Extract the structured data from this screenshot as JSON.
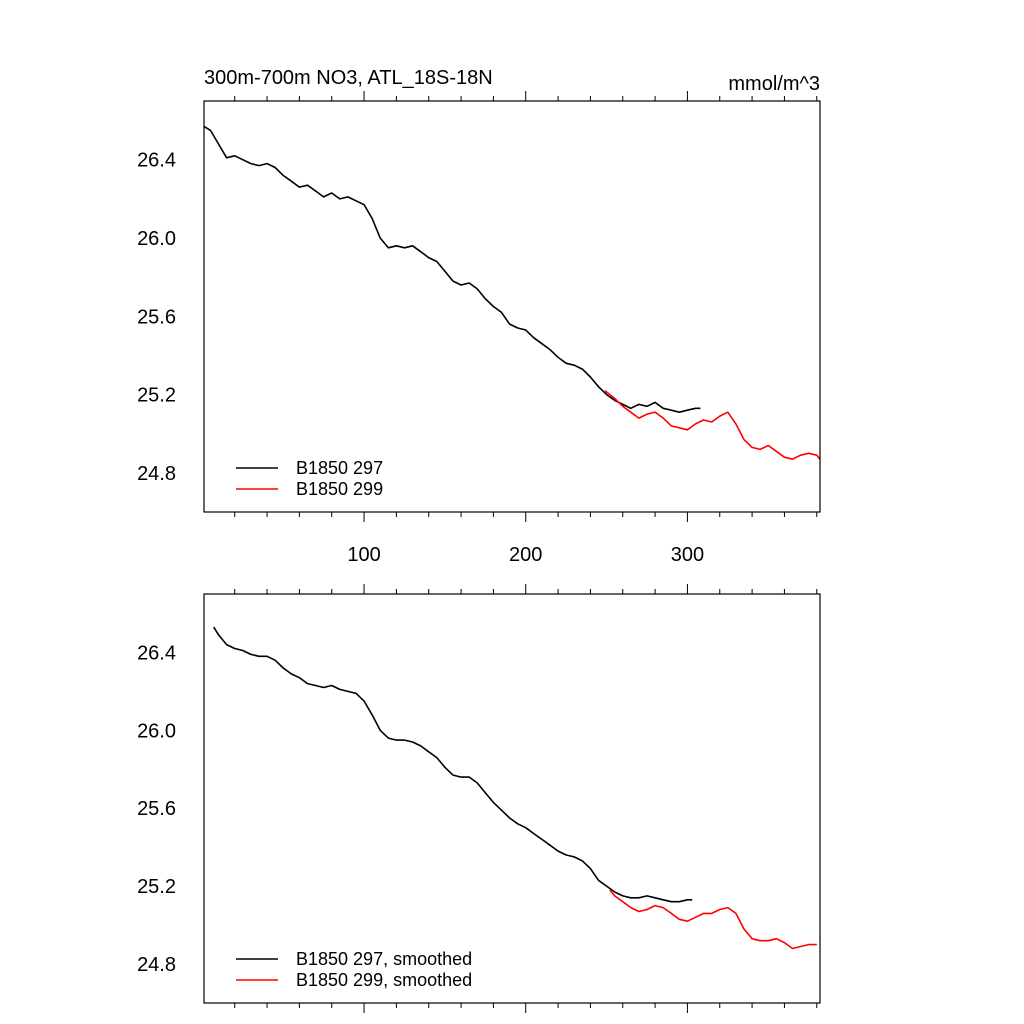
{
  "chart_data": [
    {
      "type": "line",
      "title": "300m-700m NO3, ATL_18S-18N",
      "units": "mmol/m^3",
      "xlim": [
        1,
        382
      ],
      "ylim": [
        24.6,
        26.7
      ],
      "xticks": [
        100,
        200,
        300
      ],
      "xtick_labels": [
        "100",
        "200",
        "300"
      ],
      "yticks": [
        24.8,
        25.2,
        25.6,
        26.0,
        26.4
      ],
      "ytick_labels": [
        "24.8",
        "25.2",
        "25.6",
        "26.0",
        "26.4"
      ],
      "legend_position": "bottom-left",
      "series": [
        {
          "name": "B1850 297",
          "color": "#000000",
          "x": [
            1,
            5,
            10,
            15,
            20,
            25,
            30,
            35,
            40,
            45,
            50,
            55,
            60,
            65,
            70,
            75,
            80,
            85,
            90,
            95,
            100,
            105,
            110,
            115,
            120,
            125,
            130,
            135,
            140,
            145,
            150,
            155,
            160,
            165,
            170,
            175,
            180,
            185,
            190,
            195,
            200,
            205,
            210,
            215,
            220,
            225,
            230,
            235,
            240,
            245,
            250,
            255,
            260,
            265,
            270,
            275,
            280,
            285,
            290,
            295,
            300,
            305,
            308
          ],
          "y": [
            26.57,
            26.55,
            26.48,
            26.41,
            26.42,
            26.4,
            26.38,
            26.37,
            26.38,
            26.36,
            26.32,
            26.29,
            26.26,
            26.27,
            26.24,
            26.21,
            26.23,
            26.2,
            26.21,
            26.19,
            26.17,
            26.1,
            26.0,
            25.95,
            25.96,
            25.95,
            25.96,
            25.93,
            25.9,
            25.88,
            25.83,
            25.78,
            25.76,
            25.77,
            25.74,
            25.69,
            25.65,
            25.62,
            25.56,
            25.54,
            25.53,
            25.49,
            25.46,
            25.43,
            25.39,
            25.36,
            25.35,
            25.33,
            25.29,
            25.24,
            25.2,
            25.17,
            25.15,
            25.13,
            25.15,
            25.14,
            25.16,
            25.13,
            25.12,
            25.11,
            25.12,
            25.13,
            25.13
          ]
        },
        {
          "name": "B1850 299",
          "color": "#ff0000",
          "x": [
            249,
            255,
            260,
            265,
            270,
            275,
            280,
            285,
            290,
            295,
            300,
            305,
            310,
            315,
            320,
            325,
            330,
            335,
            340,
            345,
            350,
            355,
            360,
            365,
            370,
            375,
            380,
            382
          ],
          "y": [
            25.22,
            25.18,
            25.14,
            25.11,
            25.08,
            25.1,
            25.11,
            25.08,
            25.04,
            25.03,
            25.02,
            25.05,
            25.07,
            25.06,
            25.09,
            25.11,
            25.05,
            24.97,
            24.93,
            24.92,
            24.94,
            24.91,
            24.88,
            24.87,
            24.89,
            24.9,
            24.89,
            24.87
          ]
        }
      ]
    },
    {
      "type": "line",
      "xlim": [
        1,
        382
      ],
      "ylim": [
        24.6,
        26.7
      ],
      "xticks": [
        100,
        200,
        300
      ],
      "yticks": [
        24.8,
        25.2,
        25.6,
        26.0,
        26.4
      ],
      "ytick_labels": [
        "24.8",
        "25.2",
        "25.6",
        "26.0",
        "26.4"
      ],
      "legend_position": "bottom-left",
      "series": [
        {
          "name": "B1850 297, smoothed",
          "color": "#000000",
          "x": [
            7,
            10,
            15,
            20,
            25,
            30,
            35,
            40,
            45,
            50,
            55,
            60,
            65,
            70,
            75,
            80,
            85,
            90,
            95,
            100,
            105,
            110,
            115,
            120,
            125,
            130,
            135,
            140,
            145,
            150,
            155,
            160,
            165,
            170,
            175,
            180,
            185,
            190,
            195,
            200,
            205,
            210,
            215,
            220,
            225,
            230,
            235,
            240,
            245,
            250,
            255,
            260,
            265,
            270,
            275,
            280,
            285,
            290,
            295,
            300,
            303
          ],
          "y": [
            26.53,
            26.49,
            26.44,
            26.42,
            26.41,
            26.39,
            26.38,
            26.38,
            26.36,
            26.32,
            26.29,
            26.27,
            26.24,
            26.23,
            26.22,
            26.23,
            26.21,
            26.2,
            26.19,
            26.15,
            26.08,
            26.0,
            25.96,
            25.95,
            25.95,
            25.94,
            25.92,
            25.89,
            25.86,
            25.81,
            25.77,
            25.76,
            25.76,
            25.73,
            25.68,
            25.63,
            25.59,
            25.55,
            25.52,
            25.5,
            25.47,
            25.44,
            25.41,
            25.38,
            25.36,
            25.35,
            25.33,
            25.29,
            25.23,
            25.2,
            25.17,
            25.15,
            25.14,
            25.14,
            25.15,
            25.14,
            25.13,
            25.12,
            25.12,
            25.13,
            25.13
          ]
        },
        {
          "name": "B1850 299, smoothed",
          "color": "#ff0000",
          "x": [
            252,
            255,
            260,
            265,
            270,
            275,
            280,
            285,
            290,
            295,
            300,
            305,
            310,
            315,
            320,
            325,
            330,
            335,
            340,
            345,
            350,
            355,
            360,
            365,
            370,
            375,
            380
          ],
          "y": [
            25.18,
            25.15,
            25.12,
            25.09,
            25.07,
            25.08,
            25.1,
            25.09,
            25.06,
            25.03,
            25.02,
            25.04,
            25.06,
            25.06,
            25.08,
            25.09,
            25.06,
            24.98,
            24.93,
            24.92,
            24.92,
            24.93,
            24.91,
            24.88,
            24.89,
            24.9,
            24.9
          ]
        }
      ]
    }
  ]
}
